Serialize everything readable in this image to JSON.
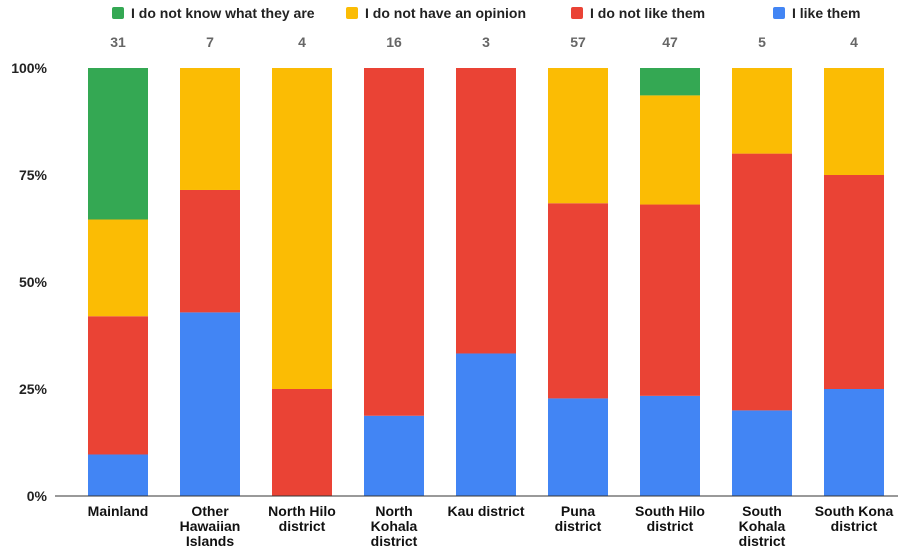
{
  "chart_data": {
    "type": "bar",
    "stacked": true,
    "percent_stacked": true,
    "categories": [
      [
        "Mainland"
      ],
      [
        "Other",
        "Hawaiian",
        "Islands"
      ],
      [
        "North Hilo",
        "district"
      ],
      [
        "North",
        "Kohala",
        "district"
      ],
      [
        "Kau district"
      ],
      [
        "Puna",
        "district"
      ],
      [
        "South Hilo",
        "district"
      ],
      [
        "South",
        "Kohala",
        "district"
      ],
      [
        "South Kona",
        "district"
      ]
    ],
    "counts": [
      "31",
      "7",
      "4",
      "16",
      "3",
      "57",
      "47",
      "5",
      "4"
    ],
    "series": [
      {
        "name": "I like them",
        "color": "#4285F4",
        "values": [
          9.7,
          42.9,
          0,
          18.75,
          33.3,
          22.8,
          23.4,
          20,
          25
        ]
      },
      {
        "name": "I do not like them",
        "color": "#EA4335",
        "values": [
          32.3,
          28.6,
          25,
          81.25,
          66.7,
          45.6,
          44.7,
          60,
          50
        ]
      },
      {
        "name": "I do not have an opinion",
        "color": "#FBBC04",
        "values": [
          22.6,
          28.5,
          75,
          0,
          0,
          31.6,
          25.5,
          20,
          25
        ]
      },
      {
        "name": "I do not know what they are",
        "color": "#34A853",
        "values": [
          35.4,
          0,
          0,
          0,
          0,
          0,
          6.4,
          0,
          0
        ]
      }
    ],
    "legend_order": [
      "I do not know what they are",
      "I do not have an opinion",
      "I do not like them",
      "I like them"
    ],
    "legend_position": "top",
    "y_ticks": [
      "0%",
      "25%",
      "50%",
      "75%",
      "100%"
    ],
    "y_tick_values": [
      0,
      25,
      50,
      75,
      100
    ],
    "ylim": [
      0,
      100
    ],
    "grid": false
  }
}
